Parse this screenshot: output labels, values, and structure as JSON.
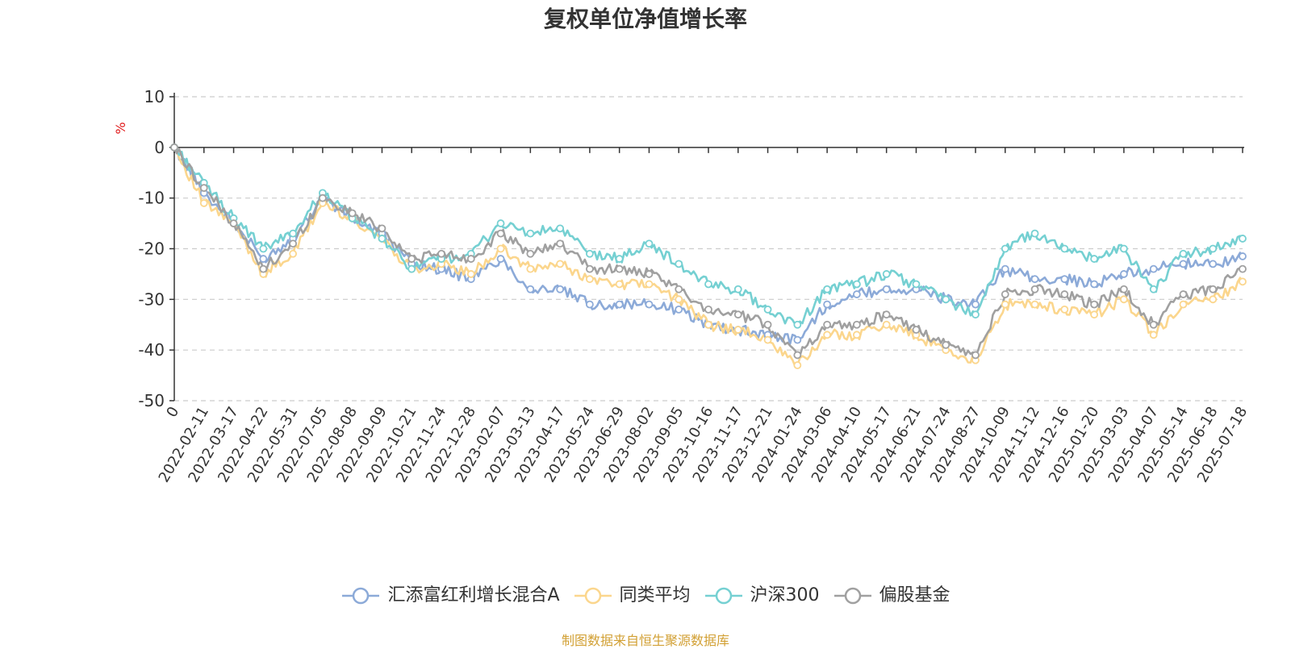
{
  "chart_data": {
    "type": "line",
    "title": "复权单位净值增长率",
    "y_unit": "%",
    "ylim": [
      -50,
      10
    ],
    "yticks": [
      10,
      0,
      -10,
      -20,
      -30,
      -40,
      -50
    ],
    "grid": "horizontal dashed",
    "legend_position": "bottom",
    "x": [
      "0",
      "2022-02-11",
      "2022-03-17",
      "2022-04-22",
      "2022-05-31",
      "2022-07-05",
      "2022-08-08",
      "2022-09-09",
      "2022-10-21",
      "2022-11-24",
      "2022-12-28",
      "2023-02-07",
      "2023-03-13",
      "2023-04-17",
      "2023-05-24",
      "2023-06-29",
      "2023-08-02",
      "2023-09-05",
      "2023-10-16",
      "2023-11-17",
      "2023-12-21",
      "2024-01-24",
      "2024-03-06",
      "2024-04-10",
      "2024-05-17",
      "2024-06-21",
      "2024-07-24",
      "2024-08-27",
      "2024-10-09",
      "2024-11-12",
      "2024-12-16",
      "2025-01-20",
      "2025-03-03",
      "2025-04-07",
      "2025-05-14",
      "2025-06-18",
      "2025-07-18"
    ],
    "series": [
      {
        "name": "汇添富红利增长混合A",
        "color": "#8caad8",
        "values": [
          0,
          -9,
          -15,
          -22,
          -18,
          -10,
          -14,
          -17,
          -23,
          -24,
          -26,
          -22,
          -28,
          -28,
          -31,
          -31,
          -31,
          -32,
          -35,
          -36,
          -37,
          -38,
          -31,
          -29,
          -28,
          -28,
          -30,
          -31,
          -24,
          -26,
          -26,
          -27,
          -25,
          -24,
          -23,
          -23,
          -21.5
        ]
      },
      {
        "name": "同类平均",
        "color": "#fbd68d",
        "values": [
          0,
          -11,
          -15,
          -25,
          -21,
          -11,
          -14,
          -18,
          -24,
          -23,
          -25,
          -20,
          -24,
          -23,
          -26,
          -27,
          -27,
          -30,
          -35,
          -36,
          -38,
          -43,
          -37,
          -37,
          -35,
          -37,
          -40,
          -42,
          -31,
          -31,
          -32,
          -33,
          -30,
          -37,
          -31,
          -30,
          -26.5
        ]
      },
      {
        "name": "沪深300",
        "color": "#75d0d2",
        "values": [
          0,
          -7,
          -14,
          -20,
          -17,
          -9,
          -14,
          -18,
          -24,
          -22,
          -21,
          -15,
          -17,
          -16,
          -21,
          -22,
          -19,
          -23,
          -27,
          -28,
          -32,
          -35,
          -28,
          -27,
          -25,
          -27,
          -30,
          -33,
          -20,
          -17,
          -20,
          -22,
          -20,
          -28,
          -21,
          -20,
          -18
        ]
      },
      {
        "name": "偏股基金",
        "color": "#a0a0a0",
        "values": [
          0,
          -8,
          -15,
          -24,
          -19,
          -10,
          -13,
          -16,
          -22,
          -21,
          -22,
          -17,
          -21,
          -19,
          -24,
          -24,
          -25,
          -28,
          -32,
          -33,
          -35,
          -41,
          -35,
          -35,
          -33,
          -36,
          -39,
          -41,
          -29,
          -28,
          -29,
          -31,
          -28,
          -35,
          -29,
          -28,
          -24
        ]
      }
    ]
  },
  "source_note": "制图数据来自恒生聚源数据库"
}
